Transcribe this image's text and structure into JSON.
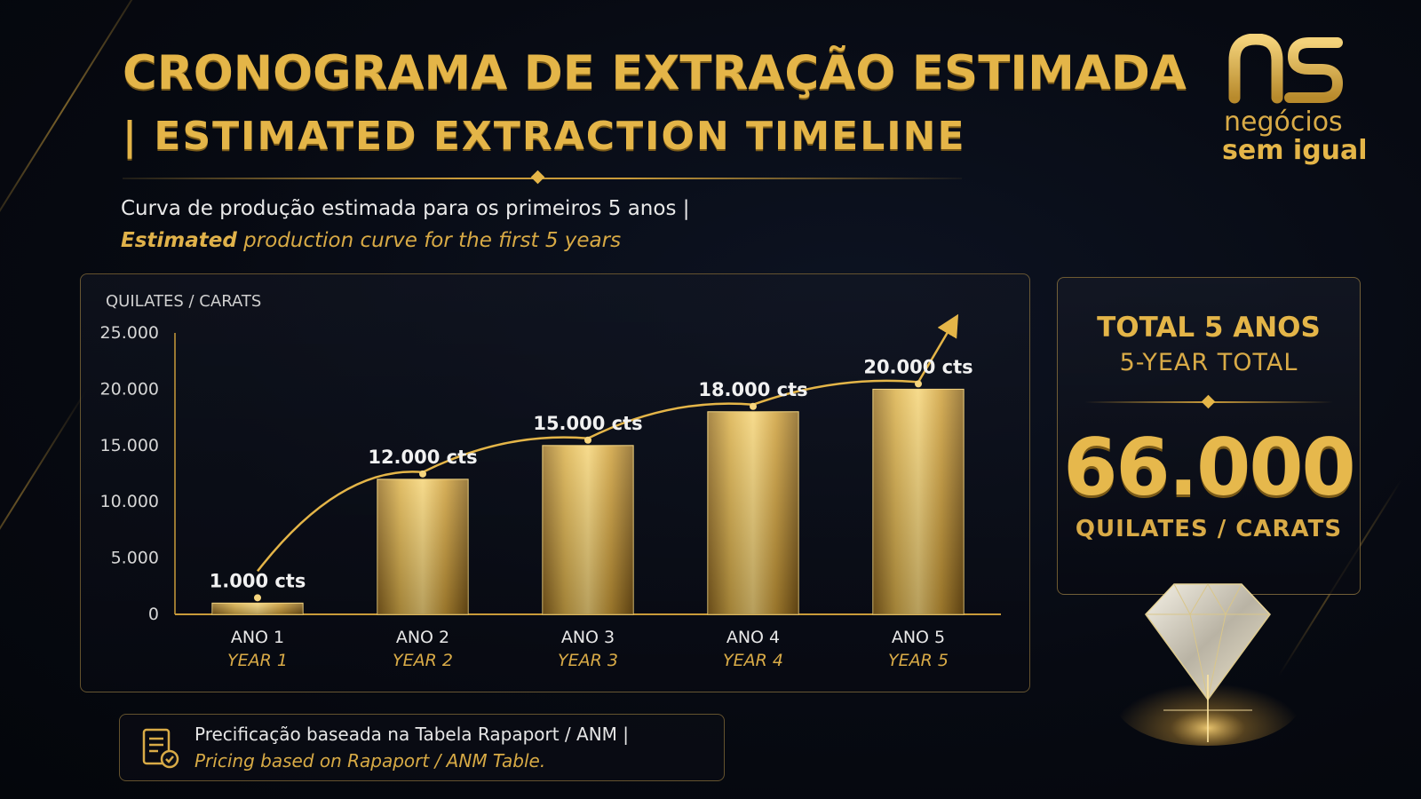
{
  "header": {
    "title_pt": "CRONOGRAMA DE EXTRAÇÃO ESTIMADA",
    "title_en": "| ESTIMATED EXTRACTION TIMELINE",
    "subtitle_pt": "Curva de produção estimada para os primeiros 5 anos |",
    "subtitle_en_bold": "Estimated",
    "subtitle_en_rest": " production curve for the first 5 years"
  },
  "logo": {
    "line1": "negócios",
    "line2": "sem igual"
  },
  "colors": {
    "gold": "#e4b548",
    "background": "#070a12"
  },
  "chart_data": {
    "type": "bar",
    "ylabel": "QUILATES / CARATS",
    "ylim": [
      0,
      25000
    ],
    "yticks": [
      0,
      5000,
      10000,
      15000,
      20000,
      25000
    ],
    "ytick_labels": [
      "0",
      "5.000",
      "10.000",
      "15.000",
      "20.000",
      "25.000"
    ],
    "categories": [
      "ANO 1",
      "ANO 2",
      "ANO 3",
      "ANO 4",
      "ANO 5"
    ],
    "categories_en": [
      "YEAR 1",
      "YEAR 2",
      "YEAR 3",
      "YEAR 4",
      "YEAR 5"
    ],
    "values": [
      1000,
      12000,
      15000,
      18000,
      20000
    ],
    "data_labels": [
      "1.000 cts",
      "12.000 cts",
      "15.000 cts",
      "18.000 cts",
      "20.000 cts"
    ],
    "trend_arrow": true,
    "grid": false
  },
  "total": {
    "title_pt": "TOTAL 5 ANOS",
    "title_en": "5-YEAR TOTAL",
    "value": "66.000",
    "unit": "QUILATES / CARATS"
  },
  "footnote": {
    "pt": "Precificação baseada na Tabela Rapaport / ANM |",
    "en": "Pricing based on Rapaport / ANM Table.",
    "icon": "document-check-icon"
  }
}
